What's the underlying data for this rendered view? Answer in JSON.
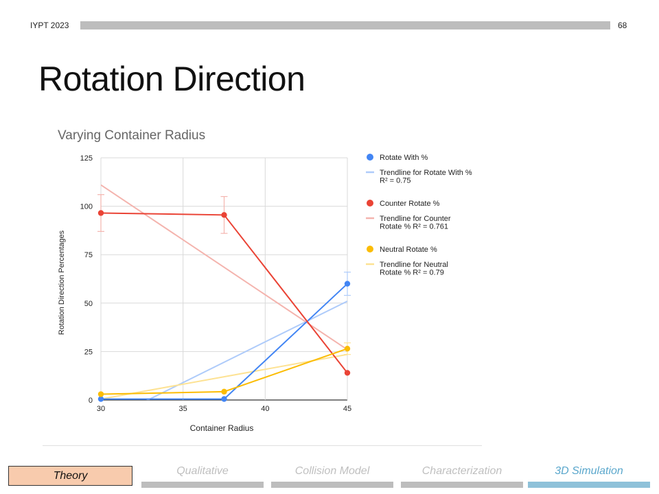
{
  "header": {
    "event": "IYPT 2023",
    "page_number": "68",
    "title": "Rotation Direction"
  },
  "nav": {
    "active": "Theory",
    "items": [
      "Qualitative",
      "Collision Model",
      "Characterization",
      "3D Simulation"
    ]
  },
  "chart_data": {
    "type": "line",
    "title": "Varying Container Radius",
    "xlabel": "Container Radius",
    "ylabel": "Rotation Direction Percentages",
    "xlim": [
      30,
      45
    ],
    "ylim": [
      0,
      125
    ],
    "x_ticks": [
      30,
      35,
      40,
      45
    ],
    "y_ticks": [
      0,
      25,
      50,
      75,
      100,
      125
    ],
    "grid": true,
    "legend_position": "right",
    "series": [
      {
        "name": "Rotate With %",
        "color": "#4285f4",
        "points": [
          [
            30,
            0.5
          ],
          [
            37.5,
            0.5
          ],
          [
            45,
            60
          ]
        ],
        "error": [
          0,
          0,
          6
        ],
        "trend_name": "Trendline for Rotate With % R² = 0.75",
        "trend_color": "#aecbfa",
        "trend": [
          [
            30,
            -12
          ],
          [
            45,
            51
          ]
        ]
      },
      {
        "name": "Counter Rotate %",
        "color": "#ea4335",
        "points": [
          [
            30,
            96.5
          ],
          [
            37.5,
            95.5
          ],
          [
            45,
            14
          ]
        ],
        "error": [
          9.5,
          9.5,
          0
        ],
        "trend_name": "Trendline for Counter Rotate % R² = 0.761",
        "trend_color": "#f4b4ae",
        "trend": [
          [
            30,
            111
          ],
          [
            45,
            26
          ]
        ]
      },
      {
        "name": "Neutral Rotate %",
        "color": "#fbbc04",
        "points": [
          [
            30,
            3
          ],
          [
            37.5,
            4.3
          ],
          [
            45,
            26.5
          ]
        ],
        "error": [
          0,
          0,
          3
        ],
        "trend_name": "Trendline for Neutral Rotate % R² = 0.79",
        "trend_color": "#fde293",
        "trend": [
          [
            30,
            0.5
          ],
          [
            45,
            23.5
          ]
        ]
      }
    ]
  }
}
